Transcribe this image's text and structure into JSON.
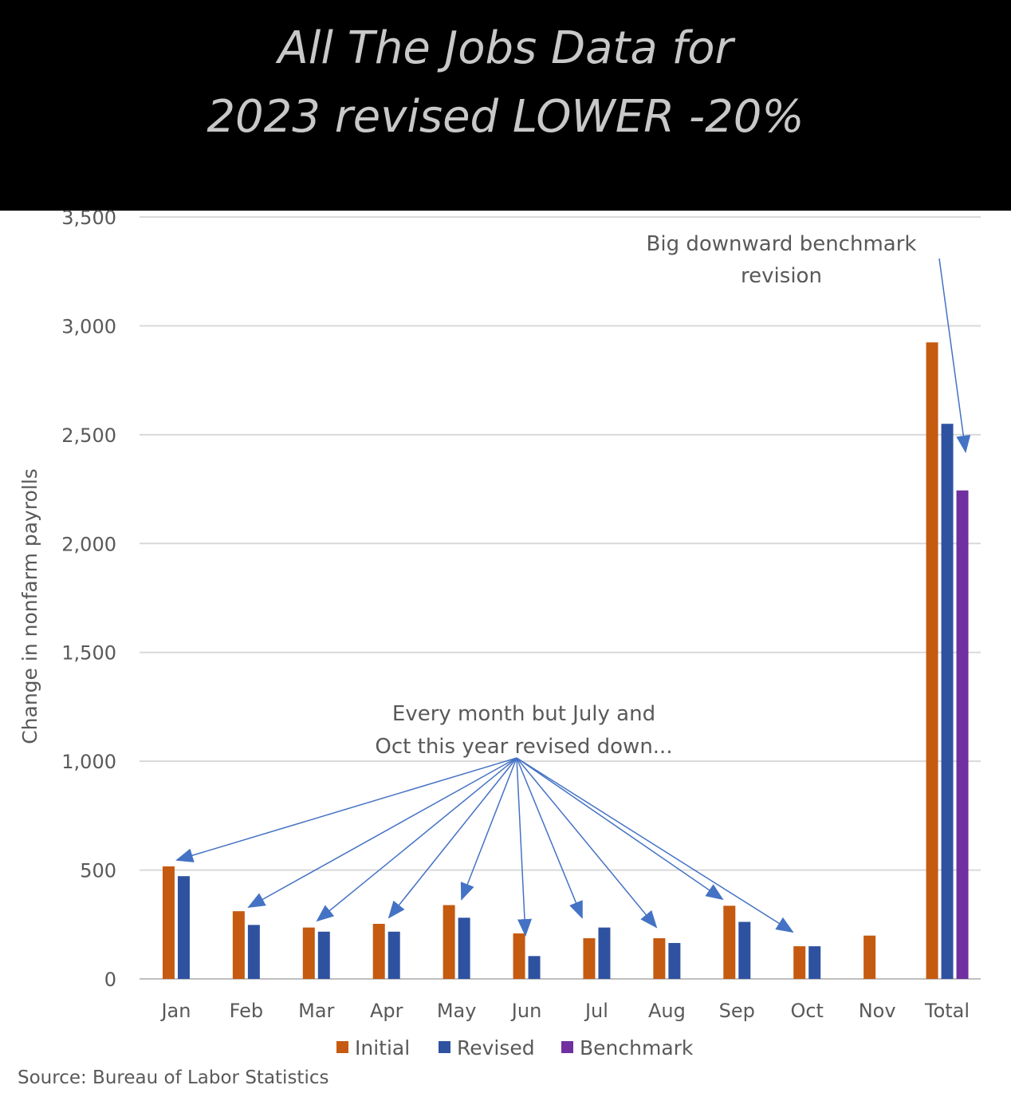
{
  "banner": {
    "title_line1": "All The Jobs Data for",
    "title_line2": "2023 revised LOWER -20%"
  },
  "source": "Source: Bureau of Labor Statistics",
  "annotations": {
    "benchmark_line1": "Big downward benchmark",
    "benchmark_line2": "revision",
    "months_line1": "Every month but July and",
    "months_line2": "Oct this year revised down..."
  },
  "colors": {
    "initial": "#c55a11",
    "revised": "#2f52a0",
    "benchmark": "#7030a0",
    "arrow": "#4472c4",
    "grid": "#d9d9d9",
    "text": "#595959"
  },
  "chart_data": {
    "type": "bar",
    "ylabel": "Change in nonfarm payrolls",
    "xlabel": "",
    "ylim": [
      0,
      3500
    ],
    "yticks": [
      "0",
      "500",
      "1,000",
      "1,500",
      "2,000",
      "2,500",
      "3,000",
      "3,500"
    ],
    "ytick_values": [
      0,
      500,
      1000,
      1500,
      2000,
      2500,
      3000,
      3500
    ],
    "grid": true,
    "legend_position": "bottom",
    "categories": [
      "Jan",
      "Feb",
      "Mar",
      "Apr",
      "May",
      "Jun",
      "Jul",
      "Aug",
      "Sep",
      "Oct",
      "Nov",
      "Total"
    ],
    "series": [
      {
        "name": "Initial",
        "values": [
          517,
          311,
          236,
          253,
          339,
          209,
          187,
          187,
          336,
          150,
          199,
          2924
        ]
      },
      {
        "name": "Revised",
        "values": [
          472,
          248,
          217,
          217,
          281,
          105,
          236,
          165,
          262,
          150,
          null,
          2550
        ]
      },
      {
        "name": "Benchmark",
        "values": [
          null,
          null,
          null,
          null,
          null,
          null,
          null,
          null,
          null,
          null,
          null,
          2244
        ]
      }
    ]
  }
}
